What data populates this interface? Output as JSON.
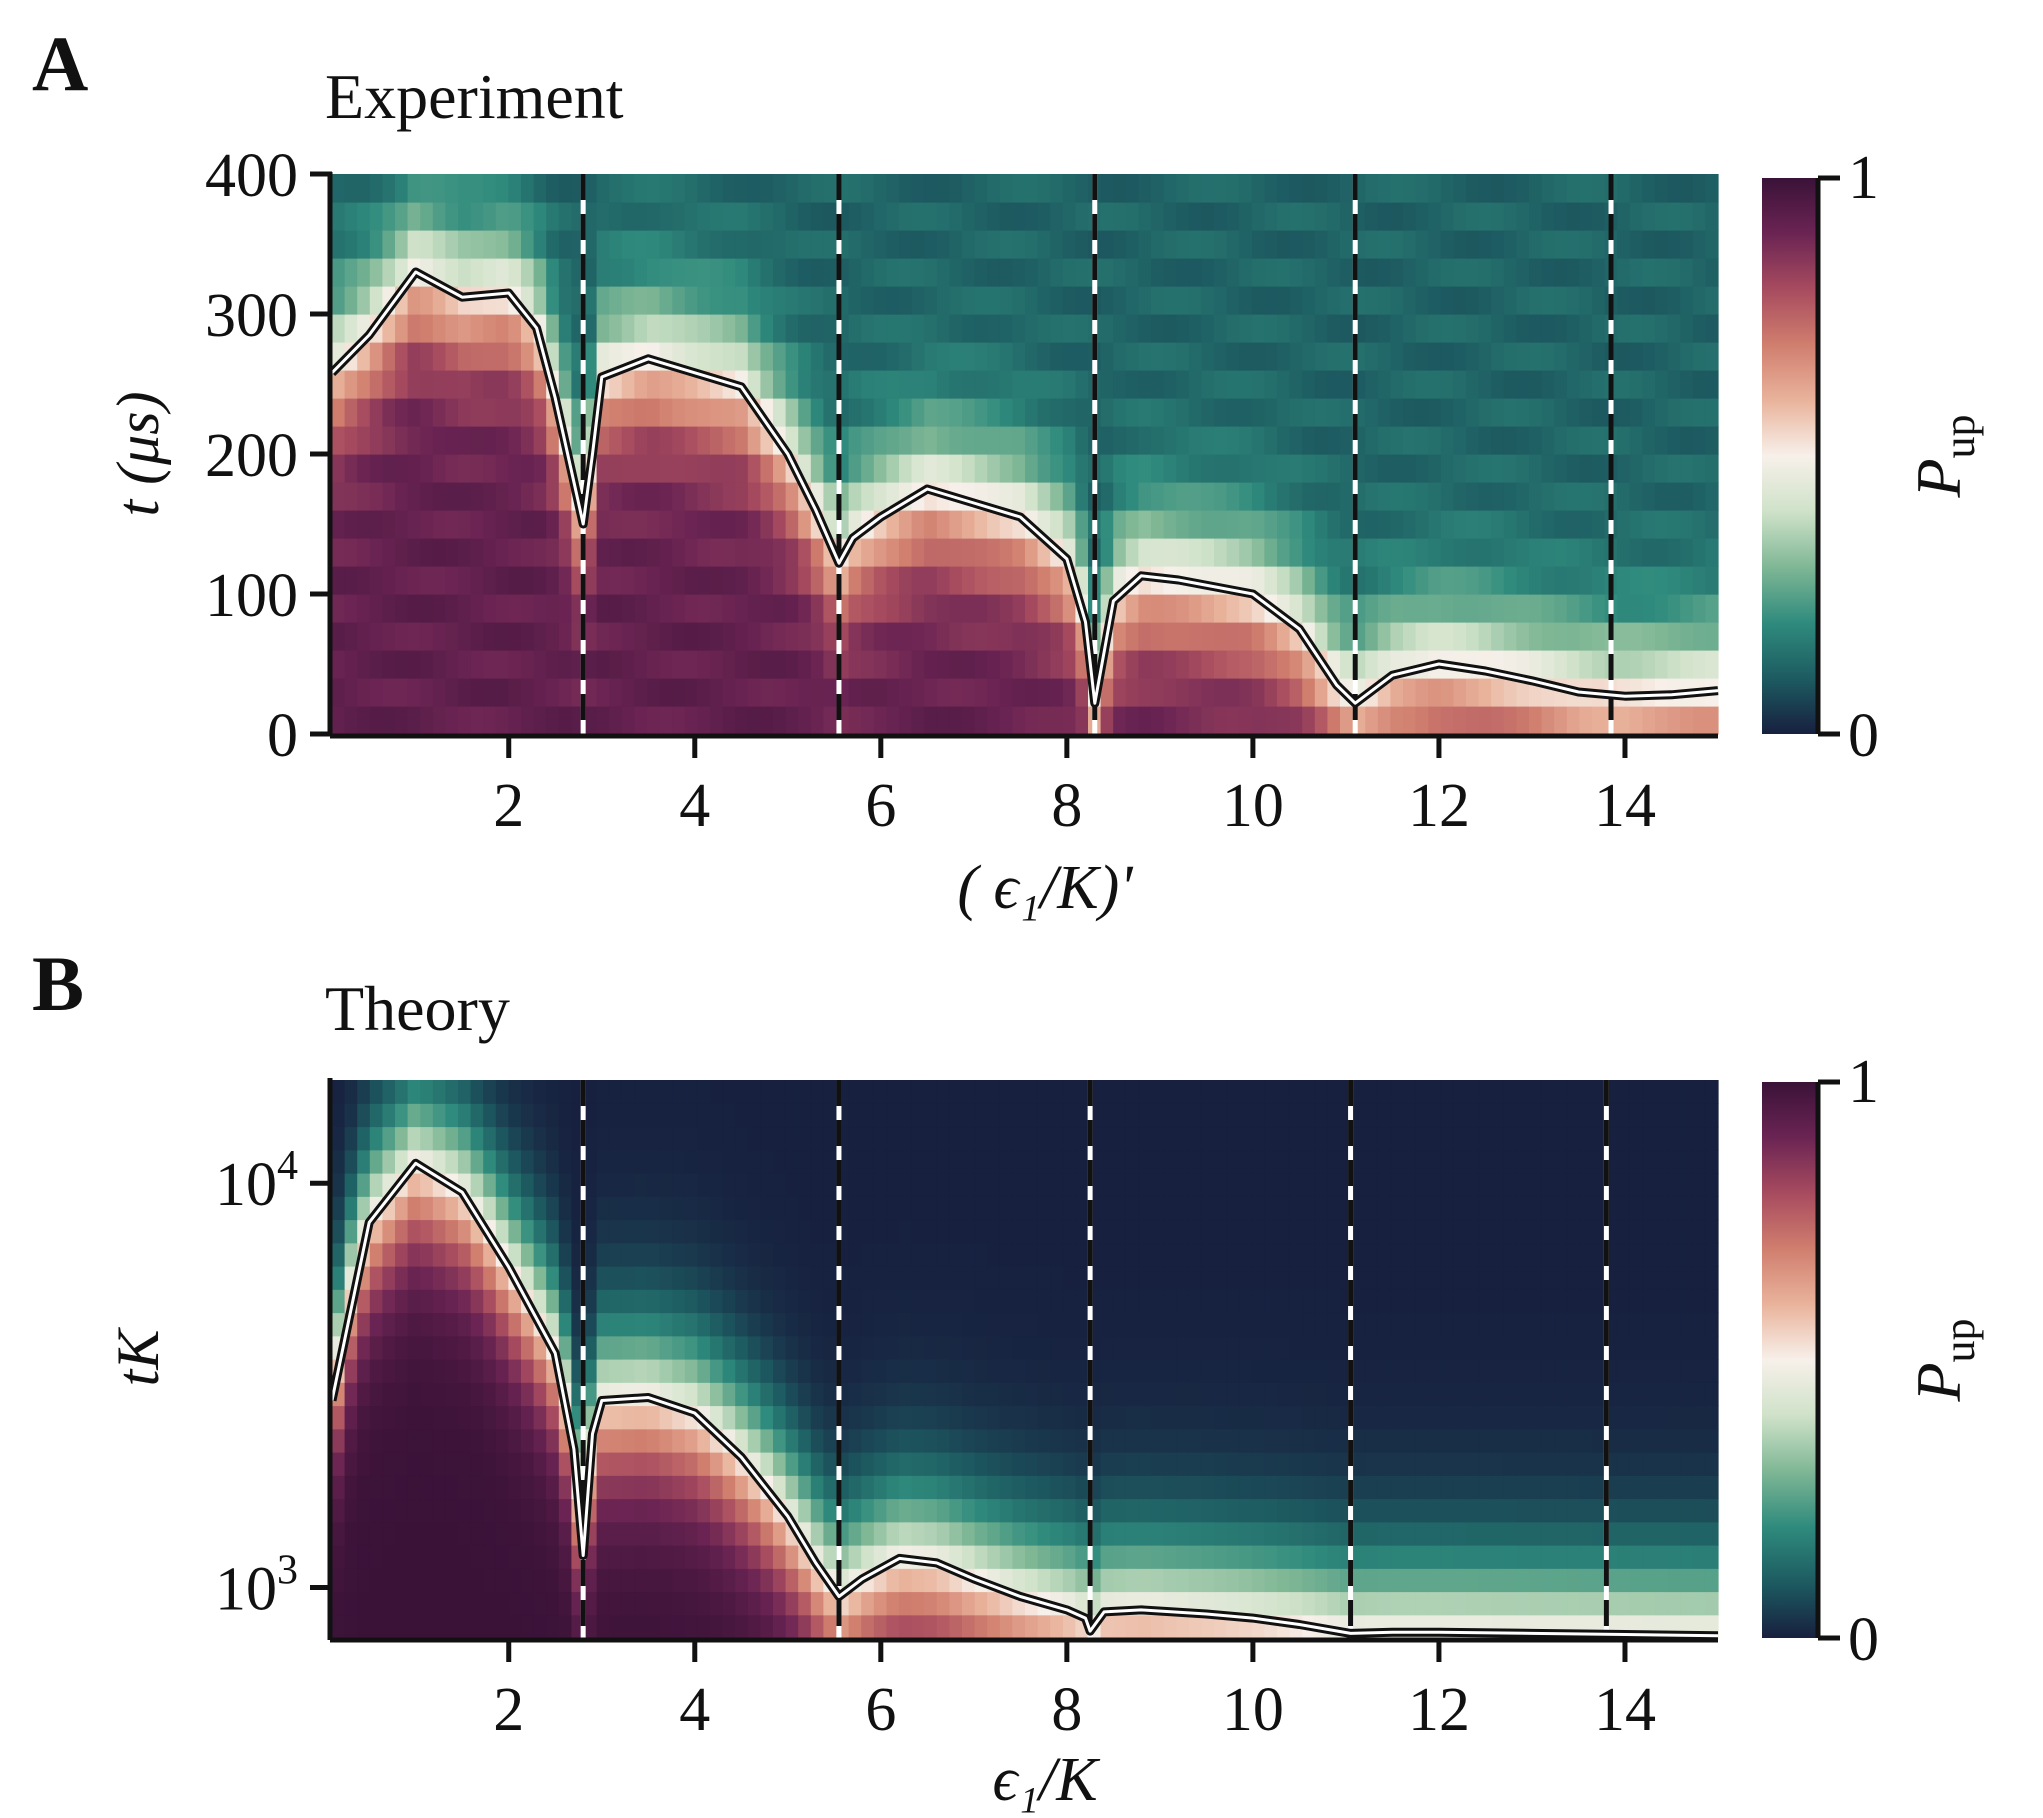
{
  "colors": {
    "colormap": [
      "#17203f",
      "#1d5b61",
      "#2f8b7d",
      "#7fb795",
      "#cfe2c9",
      "#f7f0ea",
      "#e9b39b",
      "#d07e6e",
      "#a74b5f",
      "#6b2453",
      "#3a1238"
    ],
    "curve_outer": "#111111",
    "curve_inner": "#ffffff"
  },
  "chart_data": [
    {
      "type": "heatmap",
      "panel_letter": "A",
      "title": "Experiment",
      "xlabel": "( ϵ₁/K)'",
      "ylabel": "t (μs)",
      "xlim": [
        0.1,
        15
      ],
      "ylim": [
        0,
        400
      ],
      "yscale": "linear",
      "xticks": [
        2,
        4,
        6,
        8,
        10,
        12,
        14
      ],
      "xtick_labels": [
        "2",
        "4",
        "6",
        "8",
        "10",
        "12",
        "14"
      ],
      "yticks": [
        0,
        100,
        200,
        300,
        400
      ],
      "ytick_labels": [
        "0",
        "100",
        "200",
        "300",
        "400"
      ],
      "resonances": [
        2.8,
        5.55,
        8.3,
        11.1,
        13.85
      ],
      "contour_x": [
        0.1,
        0.5,
        1.0,
        1.5,
        2.0,
        2.3,
        2.5,
        2.7,
        2.8,
        2.9,
        3.0,
        3.5,
        4.0,
        4.5,
        5.0,
        5.3,
        5.55,
        5.7,
        6.0,
        6.5,
        7.0,
        7.5,
        8.0,
        8.2,
        8.3,
        8.5,
        8.8,
        9.2,
        9.6,
        10.0,
        10.5,
        10.9,
        11.1,
        11.5,
        12.0,
        12.5,
        13.0,
        13.5,
        14.0,
        14.5,
        15.0
      ],
      "contour_y": [
        258,
        285,
        330,
        312,
        315,
        290,
        240,
        180,
        150,
        200,
        255,
        268,
        258,
        248,
        200,
        160,
        122,
        140,
        155,
        175,
        165,
        155,
        125,
        80,
        22,
        95,
        113,
        110,
        105,
        100,
        75,
        35,
        22,
        42,
        50,
        45,
        38,
        30,
        27,
        28,
        31
      ],
      "heatmap_rows": 20,
      "colorbar": {
        "label": "P",
        "label_sub": "up",
        "ticks": [
          "0",
          "1"
        ]
      }
    },
    {
      "type": "heatmap",
      "panel_letter": "B",
      "title": "Theory",
      "xlabel": "ϵ₁/K",
      "ylabel": "tK",
      "xlim": [
        0.1,
        15
      ],
      "ylim": [
        750,
        18000
      ],
      "yscale": "log",
      "xticks": [
        2,
        4,
        6,
        8,
        10,
        12,
        14
      ],
      "xtick_labels": [
        "2",
        "4",
        "6",
        "8",
        "10",
        "12",
        "14"
      ],
      "yticks": [
        1000,
        10000
      ],
      "ytick_bases": [
        "10",
        "10"
      ],
      "ytick_exponents": [
        "3",
        "4"
      ],
      "resonances": [
        2.8,
        5.55,
        8.25,
        11.05,
        13.8
      ],
      "contour_x": [
        0.1,
        0.5,
        1.0,
        1.5,
        2.0,
        2.5,
        2.7,
        2.8,
        2.9,
        3.0,
        3.5,
        4.0,
        4.5,
        5.0,
        5.3,
        5.55,
        5.8,
        6.2,
        6.6,
        7.0,
        7.5,
        8.0,
        8.2,
        8.25,
        8.4,
        8.8,
        9.5,
        10.0,
        10.5,
        11.05,
        11.5,
        12.0,
        13.0,
        14.0,
        15.0
      ],
      "contour_y": [
        2900,
        8000,
        11200,
        9500,
        6200,
        3800,
        2200,
        1200,
        2400,
        2900,
        2950,
        2700,
        2100,
        1500,
        1150,
        950,
        1050,
        1180,
        1150,
        1050,
        950,
        880,
        840,
        780,
        870,
        880,
        860,
        840,
        810,
        770,
        775,
        775,
        770,
        765,
        760
      ],
      "heatmap_rows": 24,
      "colorbar": {
        "label": "P",
        "label_sub": "up",
        "ticks": [
          "0",
          "1"
        ]
      }
    }
  ]
}
